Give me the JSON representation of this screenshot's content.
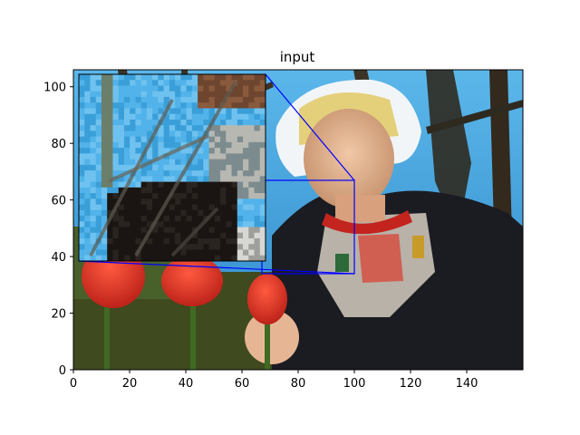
{
  "figure": {
    "title": "input"
  },
  "axes": {
    "x_ticks": [
      "0",
      "20",
      "40",
      "60",
      "80",
      "100",
      "120",
      "140"
    ],
    "y_ticks": [
      "0",
      "20",
      "40",
      "60",
      "80",
      "100"
    ],
    "xlim": [
      0,
      160
    ],
    "ylim": [
      0,
      106
    ]
  },
  "zoom_region": {
    "x_range": [
      67,
      100
    ],
    "y_range": [
      34,
      67
    ]
  },
  "colors": {
    "indicator": "#0000ff",
    "sky": "#3aa6e6",
    "tulip_red": "#e23b2c",
    "hair_blonde": "#e4d07a",
    "bonnet_white": "#f2f5f7",
    "dress_dark": "#1b1b22",
    "foliage": "#3f4a1f",
    "branch": "#3b3326"
  },
  "image_description_icons": [
    "portrait-photo",
    "tulip",
    "bonnet"
  ]
}
